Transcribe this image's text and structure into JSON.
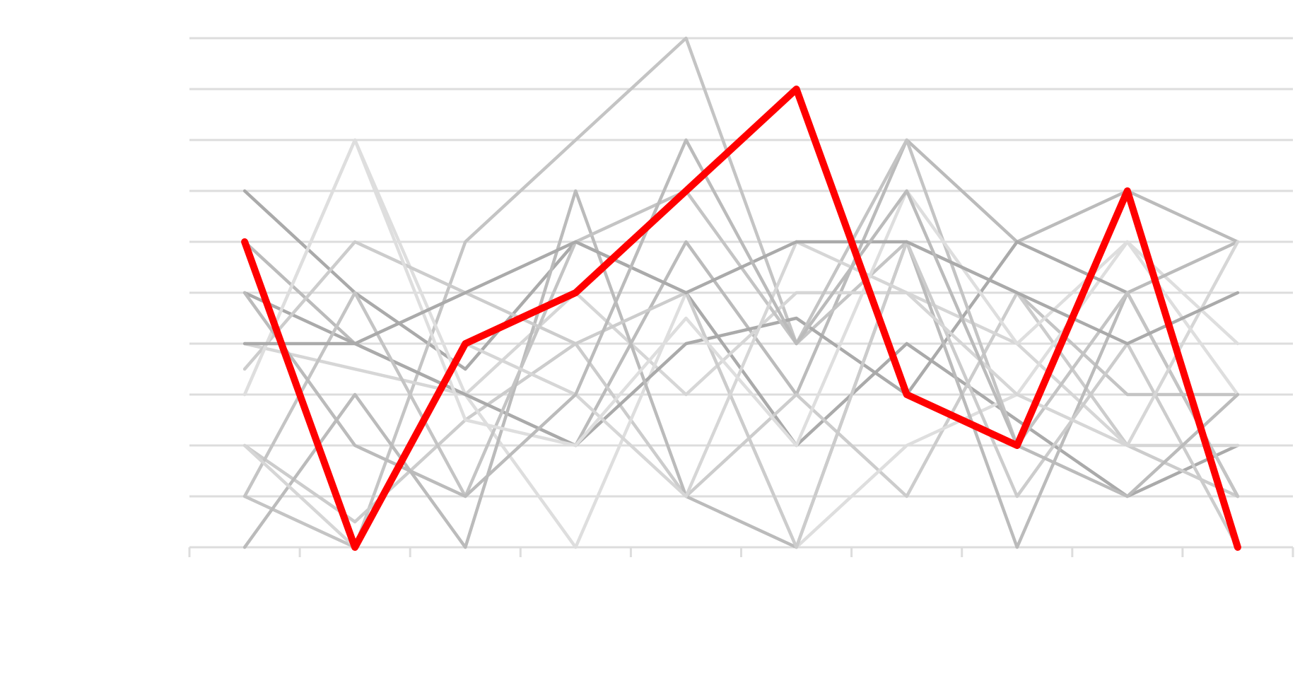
{
  "chart_data": {
    "type": "line",
    "title": "",
    "xlabel": "",
    "ylabel": "",
    "x": [
      1,
      2,
      3,
      4,
      5,
      6,
      7,
      8,
      9,
      10
    ],
    "xlim": [
      0.5,
      10.5
    ],
    "ylim": [
      0,
      10
    ],
    "grid": true,
    "legend": "none",
    "highlight_color": "#ff0000",
    "gridline_color": "#dddddd",
    "background_lines": [
      [
        7,
        5,
        3.5,
        6,
        5,
        2,
        4,
        2.5,
        1,
        2
      ],
      [
        6,
        4,
        3,
        2,
        6,
        3,
        8,
        6,
        7,
        6
      ],
      [
        1,
        0,
        6,
        8,
        10,
        4,
        6,
        5,
        3,
        3
      ],
      [
        2,
        0.5,
        2.5,
        4,
        1,
        3,
        1,
        5,
        2,
        1
      ],
      [
        4,
        3.5,
        3,
        5,
        3,
        5,
        5,
        4,
        2,
        2
      ],
      [
        3,
        8,
        3,
        0,
        5,
        0,
        2,
        3,
        6,
        4
      ],
      [
        5,
        4,
        3,
        2,
        4,
        4.5,
        3,
        6,
        5,
        1
      ],
      [
        0,
        3,
        0,
        7,
        1,
        0,
        6,
        0,
        5,
        6
      ],
      [
        1,
        5,
        1,
        6,
        7,
        4,
        8,
        2,
        5,
        1
      ],
      [
        3.5,
        6,
        5,
        4,
        5,
        0,
        6,
        1,
        4,
        0
      ],
      [
        2,
        0,
        4,
        3,
        1,
        6,
        5,
        3,
        2,
        6
      ],
      [
        3,
        8,
        2.5,
        2,
        4.5,
        2,
        7,
        4,
        6,
        3
      ],
      [
        4,
        4,
        5,
        6,
        5,
        6,
        6,
        5,
        4,
        5
      ],
      [
        5,
        2,
        1,
        3,
        8,
        4,
        7,
        2,
        1,
        3
      ]
    ],
    "series": [
      {
        "values": [
          6,
          0,
          4,
          5,
          7,
          9,
          3,
          2,
          7,
          0
        ]
      }
    ]
  }
}
